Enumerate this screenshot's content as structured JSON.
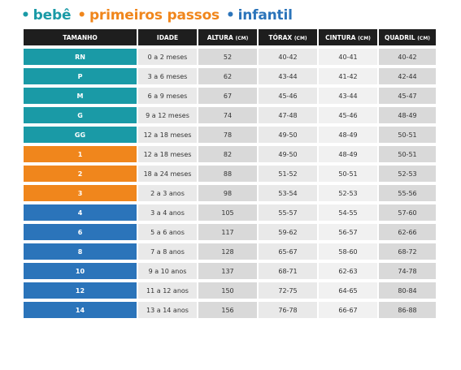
{
  "legend": [
    {
      "label": "bebê",
      "color": "#1a9aa6"
    },
    {
      "label": "primeiros passos",
      "color": "#f0861c"
    },
    {
      "label": "infantil",
      "color": "#2b74ba"
    }
  ],
  "headers": [
    {
      "label": "TAMANHO",
      "unit": ""
    },
    {
      "label": "IDADE",
      "unit": ""
    },
    {
      "label": "ALTURA",
      "unit": "(CM)"
    },
    {
      "label": "TÓRAX",
      "unit": "(CM)"
    },
    {
      "label": "CINTURA",
      "unit": "(CM)"
    },
    {
      "label": "QUADRIL",
      "unit": "(CM)"
    }
  ],
  "rows": [
    {
      "size": "RN",
      "group": 0,
      "idade": "0 a 2 meses",
      "altura": "52",
      "torax": "40-42",
      "cintura": "40-41",
      "quadril": "40-42"
    },
    {
      "size": "P",
      "group": 0,
      "idade": "3 a 6 meses",
      "altura": "62",
      "torax": "43-44",
      "cintura": "41-42",
      "quadril": "42-44"
    },
    {
      "size": "M",
      "group": 0,
      "idade": "6 a 9 meses",
      "altura": "67",
      "torax": "45-46",
      "cintura": "43-44",
      "quadril": "45-47"
    },
    {
      "size": "G",
      "group": 0,
      "idade": "9 a 12 meses",
      "altura": "74",
      "torax": "47-48",
      "cintura": "45-46",
      "quadril": "48-49"
    },
    {
      "size": "GG",
      "group": 0,
      "idade": "12 a 18 meses",
      "altura": "78",
      "torax": "49-50",
      "cintura": "48-49",
      "quadril": "50-51"
    },
    {
      "size": "1",
      "group": 1,
      "idade": "12 a 18 meses",
      "altura": "82",
      "torax": "49-50",
      "cintura": "48-49",
      "quadril": "50-51"
    },
    {
      "size": "2",
      "group": 1,
      "idade": "18 a 24 meses",
      "altura": "88",
      "torax": "51-52",
      "cintura": "50-51",
      "quadril": "52-53"
    },
    {
      "size": "3",
      "group": 1,
      "idade": "2 a 3 anos",
      "altura": "98",
      "torax": "53-54",
      "cintura": "52-53",
      "quadril": "55-56"
    },
    {
      "size": "4",
      "group": 2,
      "idade": "3 a 4 anos",
      "altura": "105",
      "torax": "55-57",
      "cintura": "54-55",
      "quadril": "57-60"
    },
    {
      "size": "6",
      "group": 2,
      "idade": "5 a 6 anos",
      "altura": "117",
      "torax": "59-62",
      "cintura": "56-57",
      "quadril": "62-66"
    },
    {
      "size": "8",
      "group": 2,
      "idade": "7 a 8 anos",
      "altura": "128",
      "torax": "65-67",
      "cintura": "58-60",
      "quadril": "68-72"
    },
    {
      "size": "10",
      "group": 2,
      "idade": "9 a 10 anos",
      "altura": "137",
      "torax": "68-71",
      "cintura": "62-63",
      "quadril": "74-78"
    },
    {
      "size": "12",
      "group": 2,
      "idade": "11 a 12 anos",
      "altura": "150",
      "torax": "72-75",
      "cintura": "64-65",
      "quadril": "80-84"
    },
    {
      "size": "14",
      "group": 2,
      "idade": "13 a 14 anos",
      "altura": "156",
      "torax": "76-78",
      "cintura": "66-67",
      "quadril": "86-88"
    }
  ]
}
